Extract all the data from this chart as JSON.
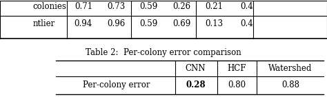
{
  "caption": "Table 2:  Per-colony error comparison",
  "col_headers": [
    "",
    "CNN",
    "HCF",
    "Watershed"
  ],
  "rows": [
    [
      "Per-colony error",
      "0.28",
      "0.80",
      "0.88"
    ]
  ],
  "top_partial_rows": [
    [
      "colonies",
      "0.71",
      "0.73",
      "0.59",
      "0.26",
      "0.21",
      "0.4"
    ],
    [
      "ntlier",
      "0.94",
      "0.96",
      "0.59",
      "0.69",
      "0.13",
      "0.4"
    ]
  ],
  "bg_color": "#ffffff",
  "text_color": "#000000",
  "font_size": 8.5,
  "caption_font_size": 8.5
}
